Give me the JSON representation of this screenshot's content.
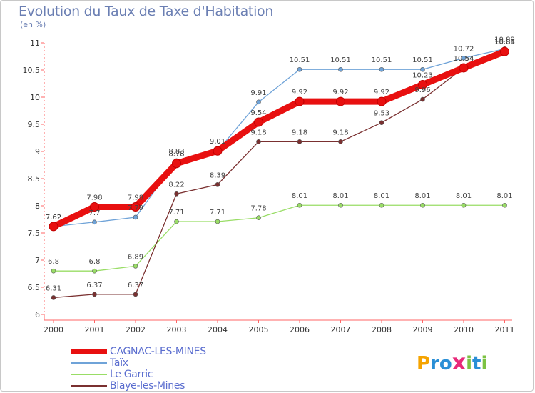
{
  "title": "Evolution du Taux de Taxe d'Habitation",
  "subtitle": "(en %)",
  "brand": {
    "text": "ProXiti",
    "letters": [
      "P",
      "r",
      "o",
      "x",
      "i",
      "t",
      "i"
    ],
    "colors": [
      "#f5a300",
      "#2a8fd6",
      "#2a8fd6",
      "#e82a7a",
      "#7cc243",
      "#2a8fd6",
      "#7cc243"
    ]
  },
  "chart_data": {
    "type": "line",
    "title": "Evolution du Taux de Taxe d'Habitation",
    "ylabel": "(en %)",
    "xlabel": "",
    "x": [
      "2000",
      "2001",
      "2002",
      "2003",
      "2004",
      "2005",
      "2006",
      "2007",
      "2008",
      "2009",
      "2010",
      "2011"
    ],
    "ylim": [
      6,
      11
    ],
    "yticks": [
      "6",
      "6.5",
      "7",
      "7.5",
      "8",
      "8.5",
      "9",
      "9.5",
      "10",
      "10.5",
      "11"
    ],
    "grid": false,
    "legend_position": "bottom-left",
    "series": [
      {
        "name": "CAGNAC-LES-MINES",
        "color": "#e81010",
        "values": [
          7.62,
          7.98,
          7.98,
          8.78,
          9.01,
          9.54,
          9.92,
          9.92,
          9.92,
          10.23,
          10.54,
          10.84
        ],
        "labels": [
          "7.62",
          "7.98",
          "7.98",
          "8.78",
          "9.01",
          "9.54",
          "9.92",
          "9.92",
          "9.92",
          "10.23",
          "10.54",
          "10.84"
        ]
      },
      {
        "name": "Taïx",
        "color": "#6fa3d8",
        "values": [
          7.62,
          7.7,
          7.79,
          8.83,
          9.01,
          9.91,
          10.51,
          10.51,
          10.51,
          10.51,
          10.72,
          10.89
        ],
        "labels": [
          "7.62",
          "7.7",
          "7.79",
          "8.83",
          "9.01",
          "9.91",
          "10.51",
          "10.51",
          "10.51",
          "10.51",
          "10.72",
          "10.89"
        ]
      },
      {
        "name": "Le Garric",
        "color": "#99dd66",
        "values": [
          6.8,
          6.8,
          6.89,
          7.71,
          7.71,
          7.78,
          8.01,
          8.01,
          8.01,
          8.01,
          8.01,
          8.01
        ],
        "labels": [
          "6.8",
          "6.8",
          "6.89",
          "7.71",
          "7.71",
          "7.78",
          "8.01",
          "8.01",
          "8.01",
          "8.01",
          "8.01",
          "8.01"
        ]
      },
      {
        "name": "Blaye-les-Mines",
        "color": "#7a3030",
        "values": [
          6.31,
          6.37,
          6.37,
          8.22,
          8.39,
          9.18,
          9.18,
          9.18,
          9.53,
          9.96,
          10.54,
          10.85
        ],
        "labels": [
          "6.31",
          "6.37",
          "6.37",
          "8.22",
          "8.39",
          "9.18",
          "9.18",
          "9.18",
          "9.53",
          "9.96",
          "10.54",
          "10.85"
        ]
      }
    ]
  }
}
